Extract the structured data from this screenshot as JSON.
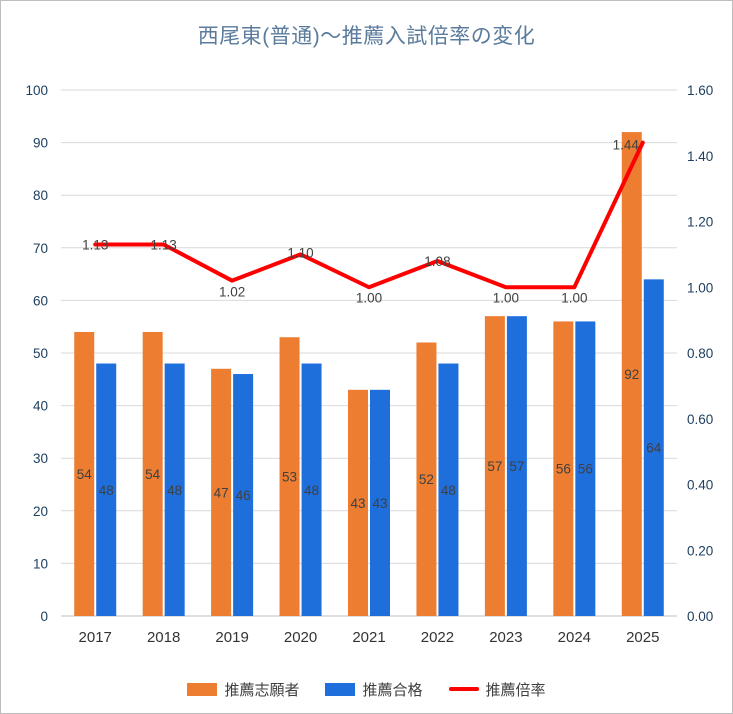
{
  "chart_data": {
    "type": "combo-bar-line",
    "title": "西尾東(普通)～推薦入試倍率の変化",
    "categories": [
      "2017",
      "2018",
      "2019",
      "2020",
      "2021",
      "2022",
      "2023",
      "2024",
      "2025"
    ],
    "series": [
      {
        "name": "推薦志願者",
        "type": "bar",
        "axis": "left",
        "color": "#ED7D31",
        "values": [
          54,
          54,
          47,
          53,
          43,
          52,
          57,
          56,
          92
        ]
      },
      {
        "name": "推薦合格",
        "type": "bar",
        "axis": "left",
        "color": "#1E6EDC",
        "values": [
          48,
          48,
          46,
          48,
          43,
          48,
          57,
          56,
          64
        ]
      },
      {
        "name": "推薦倍率",
        "type": "line",
        "axis": "right",
        "color": "#FF0000",
        "values": [
          1.13,
          1.13,
          1.02,
          1.1,
          1.0,
          1.08,
          1.0,
          1.0,
          1.44
        ],
        "labels": [
          "1.13",
          "1.13",
          "1.02",
          "1.10",
          "1.00",
          "1.08",
          "1.00",
          "1.00",
          "1.44"
        ],
        "label_dx": [
          0,
          0,
          0,
          0,
          0,
          0,
          0,
          0,
          -17
        ],
        "label_dy": [
          0,
          0,
          11,
          -2,
          10,
          0,
          10,
          10,
          2
        ]
      }
    ],
    "left_axis": {
      "min": 0,
      "max": 100,
      "step": 10,
      "ticks": [
        "0",
        "10",
        "20",
        "30",
        "40",
        "50",
        "60",
        "70",
        "80",
        "90",
        "100"
      ]
    },
    "right_axis": {
      "min": 0.0,
      "max": 1.6,
      "step": 0.2,
      "ticks": [
        "0.00",
        "0.20",
        "0.40",
        "0.60",
        "0.80",
        "1.00",
        "1.20",
        "1.40",
        "1.60"
      ]
    },
    "grid": true,
    "legend_position": "bottom",
    "style": {
      "title_color": "#5B7B9C",
      "axis_label_color": "#1F3F60",
      "category_label_color": "#333333",
      "data_label_color": "#404040",
      "grid_color": "#D9D9D9",
      "axis_line_color": "#BFBFBF",
      "background": "#FFFFFF"
    }
  }
}
